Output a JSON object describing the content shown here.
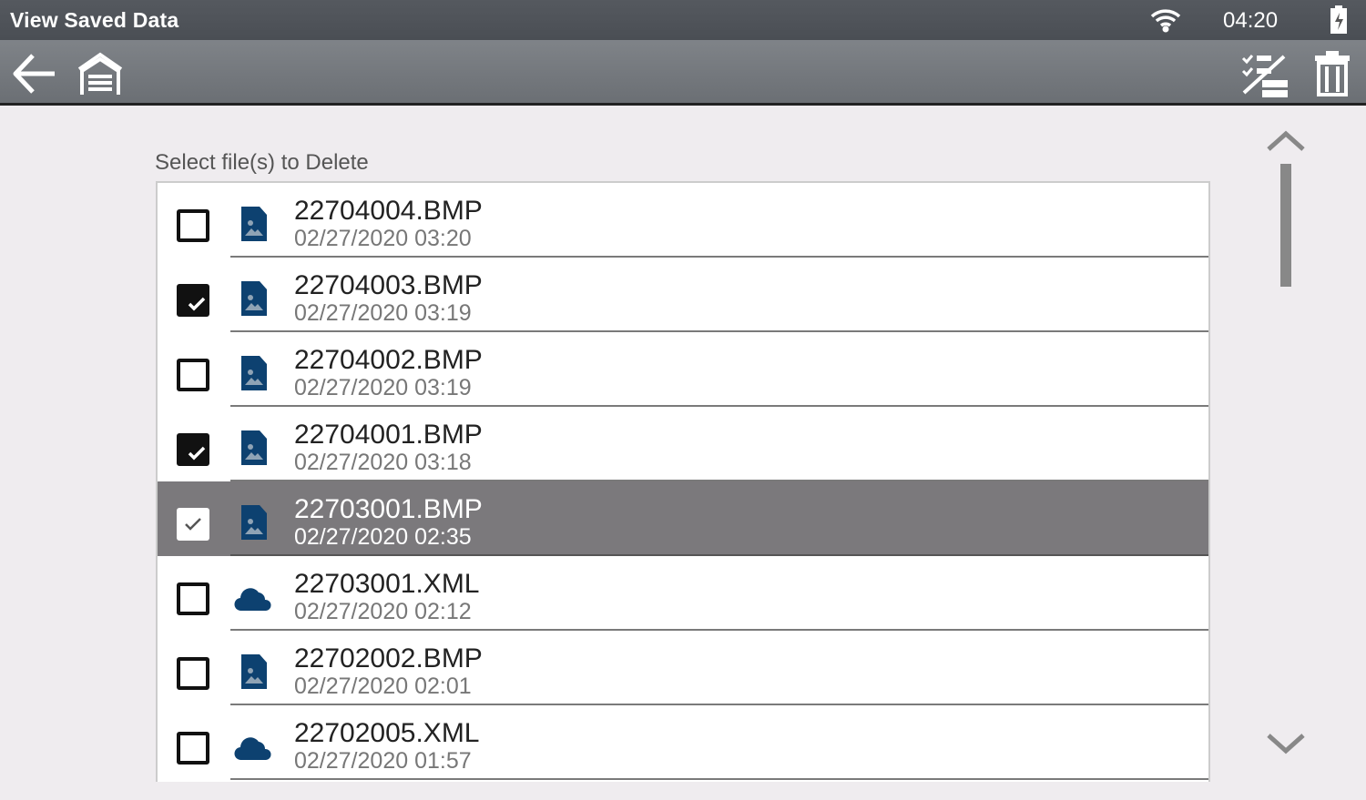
{
  "status_bar": {
    "title": "View Saved Data",
    "time": "04:20",
    "icons": [
      "wifi-icon",
      "battery-charging-icon"
    ]
  },
  "toolbar": {
    "left": [
      "back-arrow-icon",
      "home-garage-icon"
    ],
    "right": [
      "deselect-all-icon",
      "trash-icon"
    ]
  },
  "list_label": "Select file(s) to Delete",
  "files": [
    {
      "name": "22704004.BMP",
      "date": "02/27/2020 03:20",
      "type": "image",
      "checked": false,
      "highlighted": false
    },
    {
      "name": "22704003.BMP",
      "date": "02/27/2020 03:19",
      "type": "image",
      "checked": true,
      "highlighted": false
    },
    {
      "name": "22704002.BMP",
      "date": "02/27/2020 03:19",
      "type": "image",
      "checked": false,
      "highlighted": false
    },
    {
      "name": "22704001.BMP",
      "date": "02/27/2020 03:18",
      "type": "image",
      "checked": true,
      "highlighted": false
    },
    {
      "name": "22703001.BMP",
      "date": "02/27/2020 02:35",
      "type": "image",
      "checked": true,
      "highlighted": true
    },
    {
      "name": "22703001.XML",
      "date": "02/27/2020 02:12",
      "type": "cloud",
      "checked": false,
      "highlighted": false
    },
    {
      "name": "22702002.BMP",
      "date": "02/27/2020 02:01",
      "type": "image",
      "checked": false,
      "highlighted": false
    },
    {
      "name": "22702005.XML",
      "date": "02/27/2020 01:57",
      "type": "cloud",
      "checked": false,
      "highlighted": false
    }
  ],
  "colors": {
    "icon_blue": "#0d4170",
    "highlight": "#7b797c"
  }
}
